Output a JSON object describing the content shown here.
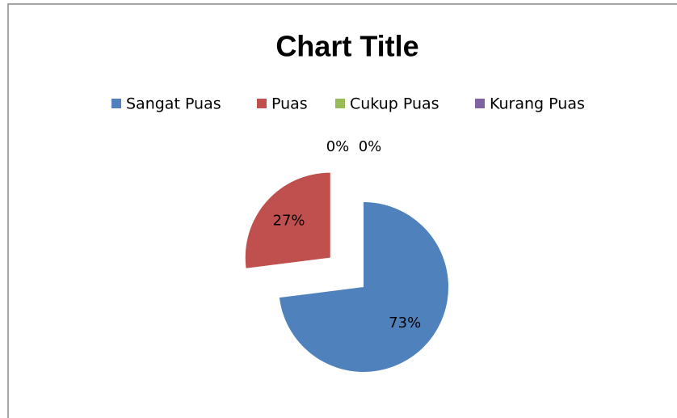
{
  "chart_data": {
    "type": "pie",
    "title": "Chart Title",
    "categories": [
      "Sangat Puas",
      "Puas",
      "Cukup Puas",
      "Kurang Puas"
    ],
    "values": [
      73,
      27,
      0,
      0
    ],
    "value_labels": [
      "73%",
      "27%",
      "0%",
      "0%"
    ],
    "colors": [
      "#4f81bd",
      "#c0504d",
      "#9bbb59",
      "#8064a2"
    ],
    "legend": "top"
  }
}
